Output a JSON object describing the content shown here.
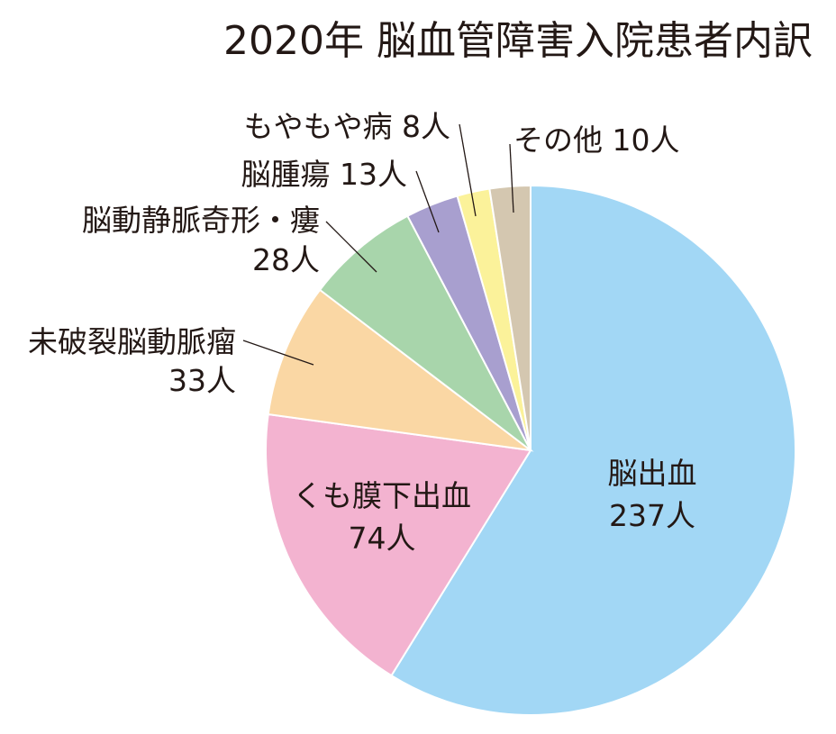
{
  "chart_data": {
    "type": "pie",
    "title": "2020年 脳血管障害入院患者内訳",
    "unit": "人",
    "slices": [
      {
        "name": "脳出血",
        "value": 237,
        "value_label": "237人",
        "color": "#a2d7f5"
      },
      {
        "name": "くも膜下出血",
        "value": 74,
        "value_label": "74人",
        "color": "#f3b3d0"
      },
      {
        "name": "未破裂脳動脈瘤",
        "value": 33,
        "value_label": "33人",
        "color": "#fad7a4"
      },
      {
        "name": "脳動静脈奇形・瘻",
        "value": 28,
        "value_label": "28人",
        "color": "#a8d5ab"
      },
      {
        "name": "脳腫瘍",
        "value": 13,
        "value_label": "13人",
        "color": "#a89fcf"
      },
      {
        "name": "もやもや病",
        "value": 8,
        "value_label": "8人",
        "color": "#fbf29a"
      },
      {
        "name": "その他",
        "value": 10,
        "value_label": "10人",
        "color": "#d4c7b0"
      }
    ]
  }
}
